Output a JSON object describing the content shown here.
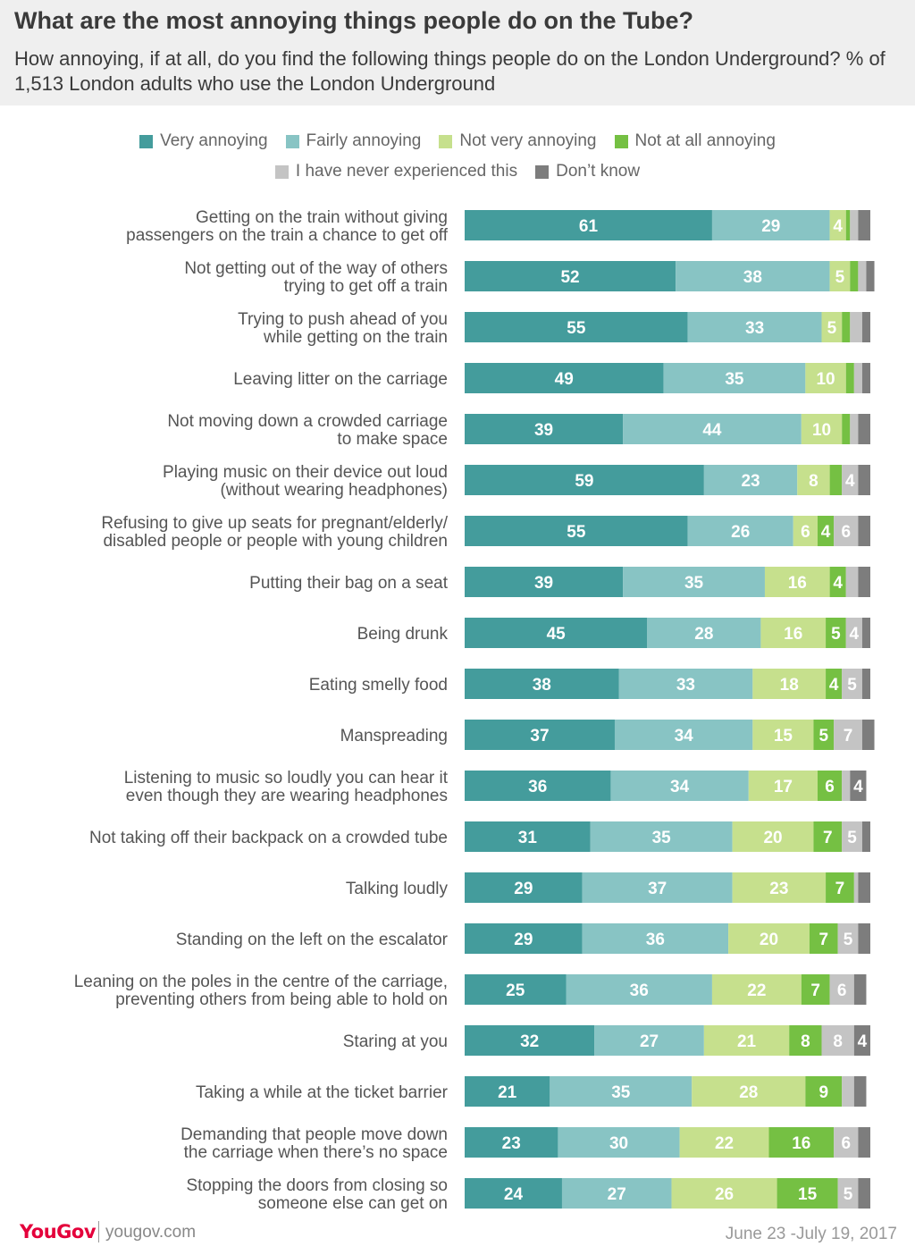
{
  "header": {
    "title": "What are the most annoying things people do on the Tube?",
    "subtitle": "How annoying, if at all, do you find the following things people do on the London Underground? % of 1,513 London adults who use the London Underground"
  },
  "footer": {
    "logo": "YouGov",
    "site": "yougov.com",
    "date": "June 23 -July 19, 2017"
  },
  "chart_data": {
    "type": "bar",
    "orientation": "horizontal",
    "stacked": true,
    "legend_position": "top",
    "grid": false,
    "categories": [
      [
        "Getting on the train without giving",
        "passengers on the train a chance to get off"
      ],
      [
        "Not getting out of the way of others",
        "trying to get off a train"
      ],
      [
        "Trying to push ahead of you",
        "while getting on the train"
      ],
      [
        "Leaving litter on the carriage"
      ],
      [
        "Not moving down a crowded carriage",
        "to make space"
      ],
      [
        "Playing music on their device out loud",
        "(without wearing headphones)"
      ],
      [
        "Refusing to give up seats for pregnant/elderly/",
        "disabled people or people with young children"
      ],
      [
        "Putting their bag on a seat"
      ],
      [
        "Being drunk"
      ],
      [
        "Eating smelly food"
      ],
      [
        "Manspreading"
      ],
      [
        "Listening to music so loudly you can hear it",
        "even though they are wearing headphones"
      ],
      [
        "Not taking off their backpack on a crowded tube"
      ],
      [
        "Talking loudly"
      ],
      [
        "Standing on the left on the escalator"
      ],
      [
        "Leaning on the poles in the centre of the carriage,",
        "preventing others from being able to hold on"
      ],
      [
        "Staring at you"
      ],
      [
        "Taking a while at the ticket barrier"
      ],
      [
        "Demanding that people move down",
        "the carriage when there’s no space"
      ],
      [
        "Stopping the doors from closing so",
        "someone else can get on"
      ]
    ],
    "series": [
      {
        "name": "Very annoying",
        "color": "#449c9c",
        "values": [
          61,
          52,
          55,
          49,
          39,
          59,
          55,
          39,
          45,
          38,
          37,
          36,
          31,
          29,
          29,
          25,
          32,
          21,
          23,
          24
        ]
      },
      {
        "name": "Fairly annoying",
        "color": "#88c4c4",
        "values": [
          29,
          38,
          33,
          35,
          44,
          23,
          26,
          35,
          28,
          33,
          34,
          34,
          35,
          37,
          36,
          36,
          27,
          35,
          30,
          27
        ]
      },
      {
        "name": "Not very annoying",
        "color": "#c6e08d",
        "values": [
          4,
          5,
          5,
          10,
          10,
          8,
          6,
          16,
          16,
          18,
          15,
          17,
          20,
          23,
          20,
          22,
          21,
          28,
          22,
          26
        ]
      },
      {
        "name": "Not at all annoying",
        "color": "#75c043",
        "values": [
          1,
          2,
          2,
          2,
          2,
          3,
          4,
          4,
          5,
          4,
          5,
          6,
          7,
          7,
          7,
          7,
          8,
          9,
          16,
          15
        ]
      },
      {
        "name": "I have never experienced this",
        "color": "#c4c4c4",
        "values": [
          2,
          2,
          3,
          2,
          2,
          4,
          6,
          3,
          4,
          5,
          7,
          2,
          5,
          1,
          5,
          6,
          8,
          3,
          6,
          5
        ]
      },
      {
        "name": "Don’t know",
        "color": "#7d7d7d",
        "values": [
          3,
          2,
          2,
          2,
          3,
          3,
          3,
          3,
          2,
          2,
          3,
          4,
          2,
          3,
          3,
          3,
          4,
          3,
          3,
          3
        ]
      }
    ],
    "label_min": 4,
    "xlim": [
      0,
      100
    ]
  }
}
